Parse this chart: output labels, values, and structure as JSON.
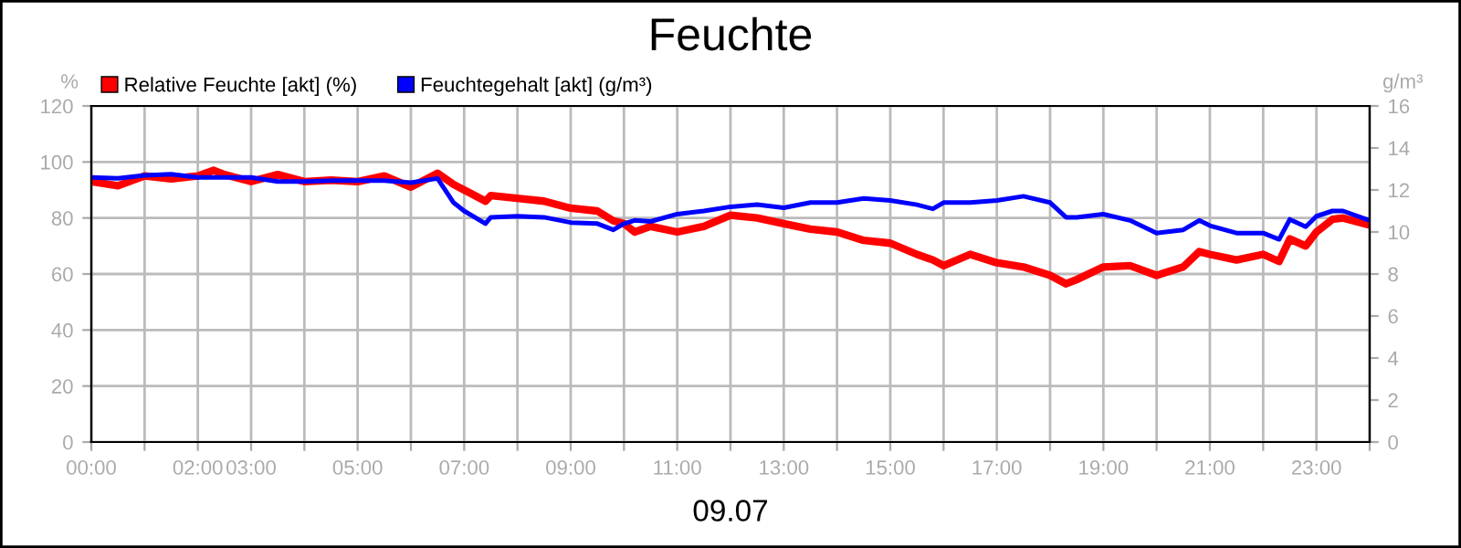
{
  "chart_data": {
    "type": "line",
    "title": "Feuchte",
    "xlabel": "09.07",
    "ylabel": "%",
    "y2label": "g/m³",
    "xlim": [
      0,
      24
    ],
    "ylim": [
      0,
      120
    ],
    "yticks": [
      0,
      20,
      40,
      60,
      80,
      100,
      120
    ],
    "y2lim": [
      0,
      16
    ],
    "y2ticks": [
      0,
      2,
      4,
      6,
      8,
      10,
      12,
      14,
      16
    ],
    "xticks": [
      {
        "value": 0,
        "label": "00:00"
      },
      {
        "value": 1,
        "label": null
      },
      {
        "value": 2,
        "label": "02:00"
      },
      {
        "value": 3,
        "label": "03:00"
      },
      {
        "value": 4,
        "label": null
      },
      {
        "value": 5,
        "label": "05:00"
      },
      {
        "value": 6,
        "label": null
      },
      {
        "value": 7,
        "label": "07:00"
      },
      {
        "value": 8,
        "label": null
      },
      {
        "value": 9,
        "label": "09:00"
      },
      {
        "value": 10,
        "label": null
      },
      {
        "value": 11,
        "label": "11:00"
      },
      {
        "value": 12,
        "label": null
      },
      {
        "value": 13,
        "label": "13:00"
      },
      {
        "value": 14,
        "label": null
      },
      {
        "value": 15,
        "label": "15:00"
      },
      {
        "value": 16,
        "label": null
      },
      {
        "value": 17,
        "label": "17:00"
      },
      {
        "value": 18,
        "label": null
      },
      {
        "value": 19,
        "label": "19:00"
      },
      {
        "value": 20,
        "label": null
      },
      {
        "value": 21,
        "label": "21:00"
      },
      {
        "value": 22,
        "label": null
      },
      {
        "value": 23,
        "label": "23:00"
      },
      {
        "value": 24,
        "label": null
      }
    ],
    "grid": true,
    "legend": "top left",
    "marker": "none",
    "line_style": "solid",
    "series": [
      {
        "name": "Relative Feuchte [akt] (%)",
        "color": "#ff0000",
        "x": [
          0,
          0.5,
          1,
          1.5,
          2,
          2.3,
          2.5,
          3,
          3.5,
          4,
          4.5,
          5,
          5.5,
          6,
          6.5,
          6.8,
          7,
          7.4,
          7.5,
          8,
          8.5,
          9,
          9.5,
          9.8,
          10,
          10.2,
          10.5,
          11,
          11.5,
          12,
          12.5,
          13,
          13.5,
          14,
          14.5,
          15,
          15.5,
          15.8,
          16,
          16.5,
          17,
          17.5,
          18,
          18.3,
          18.5,
          19,
          19.5,
          20,
          20.5,
          20.8,
          21,
          21.5,
          22,
          22.3,
          22.5,
          22.8,
          23,
          23.3,
          23.5,
          24
        ],
        "values": [
          93,
          91.5,
          95,
          94,
          95,
          97,
          95.5,
          93,
          95.5,
          93,
          93.5,
          93,
          95,
          91,
          96,
          92,
          90,
          86,
          88,
          87,
          86,
          83.5,
          82.5,
          79,
          78,
          75,
          77,
          75,
          77,
          81,
          80,
          78,
          76,
          75,
          72,
          71,
          67,
          65,
          63,
          67,
          64,
          62.5,
          59.5,
          56.5,
          58,
          62.5,
          63,
          59.5,
          62.5,
          68,
          67,
          65,
          67,
          64.5,
          72.5,
          70,
          75,
          79.5,
          80,
          77.5
        ]
      },
      {
        "name": "Feuchtegehalt [akt] (g/m³)",
        "color": "#0000ff",
        "axis": "y2",
        "x": [
          0,
          0.5,
          1,
          1.5,
          2,
          2.5,
          3,
          3.5,
          4,
          4.5,
          5,
          5.5,
          6,
          6.5,
          6.8,
          7,
          7.4,
          7.5,
          8,
          8.5,
          9,
          9.5,
          9.8,
          10,
          10.2,
          10.5,
          11,
          11.5,
          12,
          12.5,
          13,
          13.5,
          14,
          14.5,
          15,
          15.5,
          15.8,
          16,
          16.5,
          17,
          17.5,
          18,
          18.3,
          18.5,
          19,
          19.5,
          20,
          20.5,
          20.8,
          21,
          21.5,
          22,
          22.3,
          22.5,
          22.8,
          23,
          23.3,
          23.5,
          24
        ],
        "values": [
          12.6,
          12.55,
          12.7,
          12.75,
          12.6,
          12.6,
          12.6,
          12.4,
          12.4,
          12.45,
          12.45,
          12.45,
          12.35,
          12.55,
          11.4,
          11,
          10.4,
          10.7,
          10.75,
          10.7,
          10.45,
          10.4,
          10.1,
          10.4,
          10.55,
          10.5,
          10.85,
          11,
          11.2,
          11.3,
          11.15,
          11.4,
          11.4,
          11.6,
          11.5,
          11.3,
          11.1,
          11.4,
          11.4,
          11.5,
          11.7,
          11.4,
          10.7,
          10.7,
          10.85,
          10.55,
          9.95,
          10.1,
          10.55,
          10.3,
          9.95,
          9.95,
          9.65,
          10.6,
          10.25,
          10.75,
          11,
          11,
          10.55
        ]
      }
    ]
  }
}
